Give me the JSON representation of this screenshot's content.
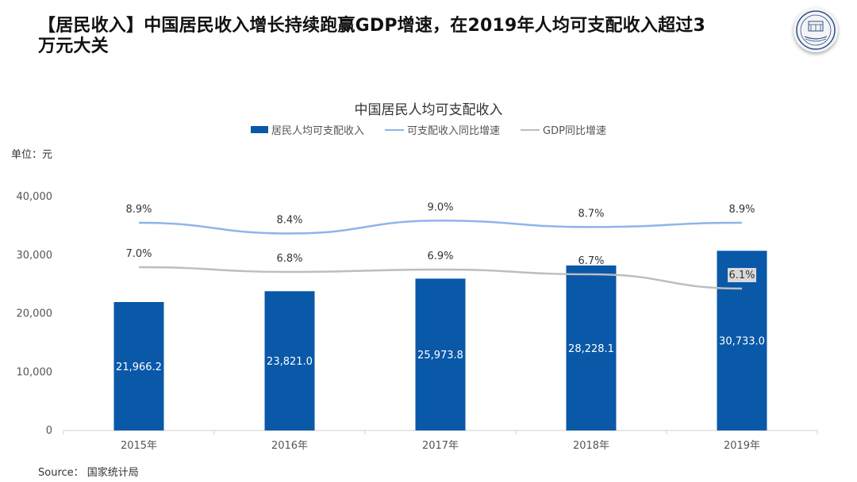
{
  "slide": {
    "title": "【居民收入】中国居民收入增长持续跑赢GDP增速，在2019年人均可支配收入超过3万元大关",
    "source": "Source： 国家统计局"
  },
  "logo": {
    "name": "university-seal"
  },
  "chart_data": {
    "type": "bar",
    "title": "中国居民人均可支配收入",
    "unit_label": "单位：元",
    "categories": [
      "2015年",
      "2016年",
      "2017年",
      "2018年",
      "2019年"
    ],
    "ylim": [
      0,
      40000
    ],
    "yticks": [
      0,
      10000,
      20000,
      30000,
      40000
    ],
    "ytick_labels": [
      "0",
      "10,000",
      "20,000",
      "30,000",
      "40,000"
    ],
    "grid": false,
    "legend_position": "top-center",
    "bar_series": {
      "name": "居民人均可支配收入",
      "values": [
        21966.2,
        23821.0,
        25973.8,
        28228.1,
        30733.0
      ],
      "labels": [
        "21,966.2",
        "23,821.0",
        "25,973.8",
        "28,228.1",
        "30,733.0"
      ],
      "color": "#0a58a8"
    },
    "line_series": [
      {
        "name": "可支配收入同比增速",
        "values": [
          8.9,
          8.4,
          9.0,
          8.7,
          8.9
        ],
        "labels": [
          "8.9%",
          "8.4%",
          "9.0%",
          "8.7%",
          "8.9%"
        ],
        "color": "#8fb4ea"
      },
      {
        "name": "GDP同比增速",
        "values": [
          7.0,
          6.8,
          6.9,
          6.7,
          6.1
        ],
        "labels": [
          "7.0%",
          "6.8%",
          "6.9%",
          "6.7%",
          "6.1%"
        ],
        "color": "#bdbdbd"
      }
    ]
  }
}
